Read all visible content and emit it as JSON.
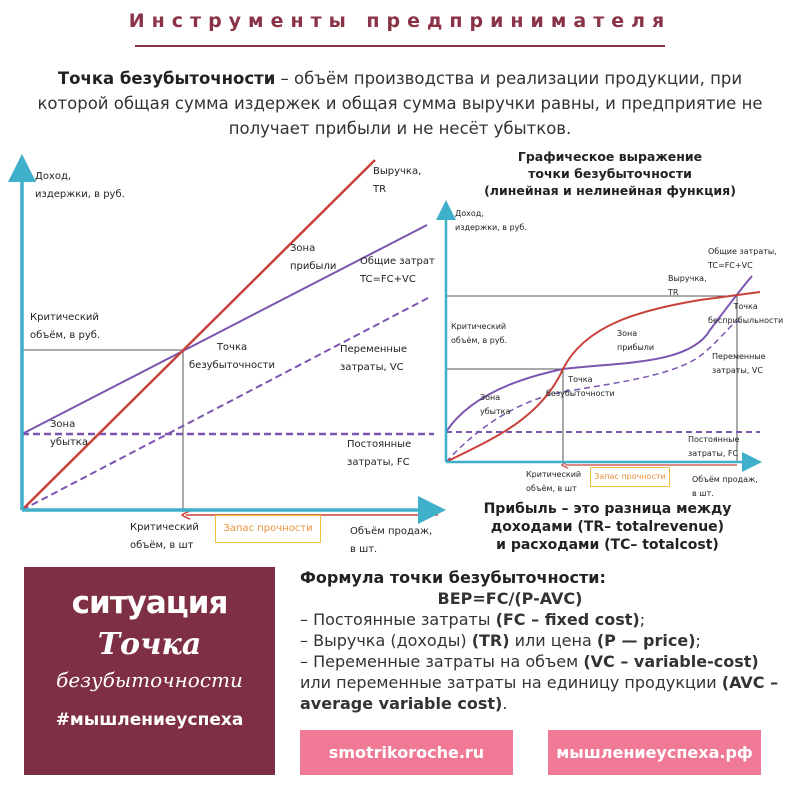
{
  "header": {
    "title": "Инструменты предпринимателя"
  },
  "intro": {
    "term": "Точка безубыточности",
    "definition": " – объём производства и реализации продукции, при которой общая сумма издержек и общая сумма выручки равны, и предприятие не получает прибыли и не несёт убытков."
  },
  "colors": {
    "brand": "#7e2f44",
    "revenue": "#c8413a",
    "cost": "#7b55b0",
    "axis": "#3fb0c9",
    "button": "#f07a95"
  },
  "left_chart": {
    "y_axis": [
      "Доход,",
      "издержки, в руб."
    ],
    "revenue": [
      "Выручка,",
      "TR"
    ],
    "profit_zone": [
      "Зона",
      "прибыли"
    ],
    "total_cost": [
      "Общие затрат",
      "TC=FC+VC"
    ],
    "critical_rub": [
      "Критический",
      "объём, в руб."
    ],
    "break_even": [
      "Точка",
      "безубыточности"
    ],
    "variable": [
      "Переменные",
      "затраты, VC"
    ],
    "loss_zone": [
      "Зона",
      "убытка"
    ],
    "fixed": [
      "Постоянные",
      "затраты, FC"
    ],
    "critical_units": [
      "Критический",
      "объём, в шт"
    ],
    "margin": "Запас прочности",
    "x_axis": [
      "Объём продаж,",
      "в шт."
    ]
  },
  "right_chart": {
    "title": [
      "Графическое выражение",
      "точки безубыточности",
      "(линейная и нелинейная функция)"
    ],
    "y_axis": [
      "Доход,",
      "издержки, в руб."
    ],
    "total_cost": [
      "Общие затраты,",
      "TC=FC+VC"
    ],
    "revenue": [
      "Выручка,",
      "TR"
    ],
    "no_profit": [
      "Точка",
      "бесприбыльности"
    ],
    "critical_rub": [
      "Критический",
      "объём, в руб."
    ],
    "profit_zone": [
      "Зона",
      "прибыли"
    ],
    "variable": [
      "Переменные",
      "затраты, VC"
    ],
    "break_even": [
      "Точка",
      "безубыточности"
    ],
    "loss_zone": [
      "Зона",
      "убытка"
    ],
    "fixed": [
      "Постоянные",
      "затраты, FC"
    ],
    "critical_units": [
      "Критический",
      "объём, в шт"
    ],
    "margin": "Запас прочности",
    "x_axis": [
      "Объём продаж,",
      "в шт."
    ],
    "caption": [
      "Прибыль – это разница между",
      "доходами  (TR– totalrevenue)",
      "и расходами (TC– totalcost)"
    ]
  },
  "situation": {
    "line1": "ситуация",
    "line2": "Точка",
    "line3": "безубыточности",
    "hashtag": "#мышлениеуспеха"
  },
  "formula": {
    "heading": "Формула точки безубыточности:",
    "expr": "BEP=FC/(P-AVC)",
    "items": [
      {
        "text": "– Постоянные затраты ",
        "bold": "(FC – fixed cost)",
        "end": ";"
      },
      {
        "text": "– Выручка (доходы) ",
        "bold": "(TR)",
        "mid": " или цена ",
        "bold2": "(P — price)",
        "end": ";"
      },
      {
        "text": "– Переменные затраты на объем ",
        "bold": "(VC – variable-cost)",
        "mid": " или переменные затраты на единицу продукции ",
        "bold2": "(AVC – average variable cost)",
        "end": "."
      }
    ]
  },
  "links": {
    "site1": "smotrikoroche.ru",
    "site2": "мышлениеуспеха.рф"
  }
}
